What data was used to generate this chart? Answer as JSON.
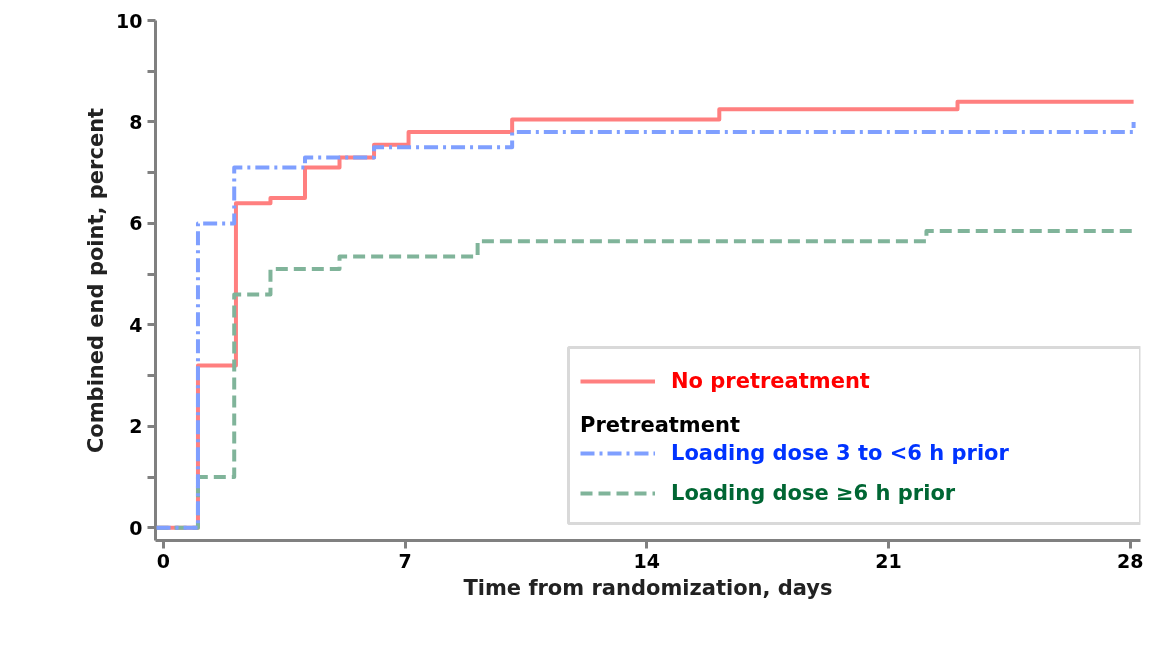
{
  "chart_data": {
    "type": "step",
    "xlabel": "Time from randomization, days",
    "ylabel": "Combined end point, percent",
    "xlim": [
      -0.23,
      28.3
    ],
    "ylim": [
      -0.25,
      10
    ],
    "xticks": [
      0,
      7,
      14,
      21,
      28
    ],
    "yticks": [
      0,
      {
        "value": 1,
        "label": null
      },
      2,
      {
        "value": 3,
        "label": null
      },
      4,
      {
        "value": 5,
        "label": null
      },
      6,
      {
        "value": 7,
        "label": null
      },
      8,
      {
        "value": 9,
        "label": null
      },
      10
    ],
    "grid": false,
    "legend": "bottom right",
    "legend_title": "Pretreatment",
    "series": [
      {
        "name": "No pretreatment",
        "color": "#ff7f7f",
        "line_style": "solid",
        "x": [
          -0.2,
          1.0,
          2.1,
          3.1,
          4.1,
          5.1,
          6.1,
          7.1,
          10.1,
          16.1,
          23.0,
          28.1
        ],
        "values": [
          0,
          3.2,
          6.4,
          6.5,
          7.1,
          7.3,
          7.55,
          7.8,
          8.05,
          8.25,
          8.4,
          8.4
        ]
      },
      {
        "name": "Loading dose 3 to <6 h prior",
        "color": "#7f9fff",
        "line_style": "dashdot",
        "x": [
          -0.2,
          1.0,
          2.05,
          4.1,
          6.1,
          10.1,
          28.1
        ],
        "values": [
          0,
          6.0,
          7.1,
          7.3,
          7.5,
          7.8,
          8.0
        ]
      },
      {
        "name": "Loading dose ≥6 h prior",
        "color": "#80b49a",
        "line_style": "dashed",
        "x": [
          -0.2,
          1.0,
          2.05,
          3.1,
          5.1,
          9.1,
          22.1,
          28.1
        ],
        "values": [
          0,
          1.0,
          4.6,
          5.1,
          5.35,
          5.65,
          5.85,
          5.85
        ]
      }
    ]
  }
}
